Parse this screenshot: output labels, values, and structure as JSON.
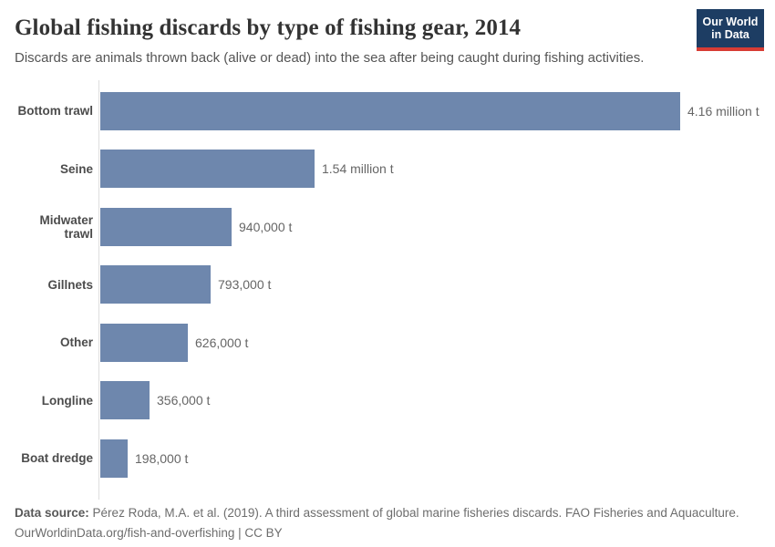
{
  "header": {
    "title": "Global fishing discards by type of fishing gear, 2014",
    "subtitle": "Discards are animals thrown back (alive or dead) into the sea after being caught during fishing activities.",
    "logo": {
      "line1": "Our World",
      "line2": "in Data",
      "bg_color": "#1d3d63",
      "accent_color": "#d73c34"
    }
  },
  "chart_data": {
    "type": "bar",
    "orientation": "horizontal",
    "title": "Global fishing discards by type of fishing gear, 2014",
    "subtitle": "Discards are animals thrown back (alive or dead) into the sea after being caught during fishing activities.",
    "categories": [
      "Bottom trawl",
      "Seine",
      "Midwater trawl",
      "Gillnets",
      "Other",
      "Longline",
      "Boat dredge"
    ],
    "values": [
      4160000,
      1540000,
      940000,
      793000,
      626000,
      356000,
      198000
    ],
    "value_labels": [
      "4.16 million t",
      "1.54 million t",
      "940,000 t",
      "793,000 t",
      "626,000 t",
      "356,000 t",
      "198,000 t"
    ],
    "unit": "t",
    "xlim": [
      0,
      4160000
    ],
    "grid": false,
    "legend": "none",
    "bar_color": "#6e87ad",
    "axis_line_color": "#dddddd"
  },
  "footer": {
    "source_label": "Data source:",
    "source_text": "Pérez Roda, M.A. et al. (2019). A third assessment of global marine fisheries discards. FAO Fisheries and Aquaculture.",
    "link_line": "OurWorldinData.org/fish-and-overfishing | CC BY"
  }
}
